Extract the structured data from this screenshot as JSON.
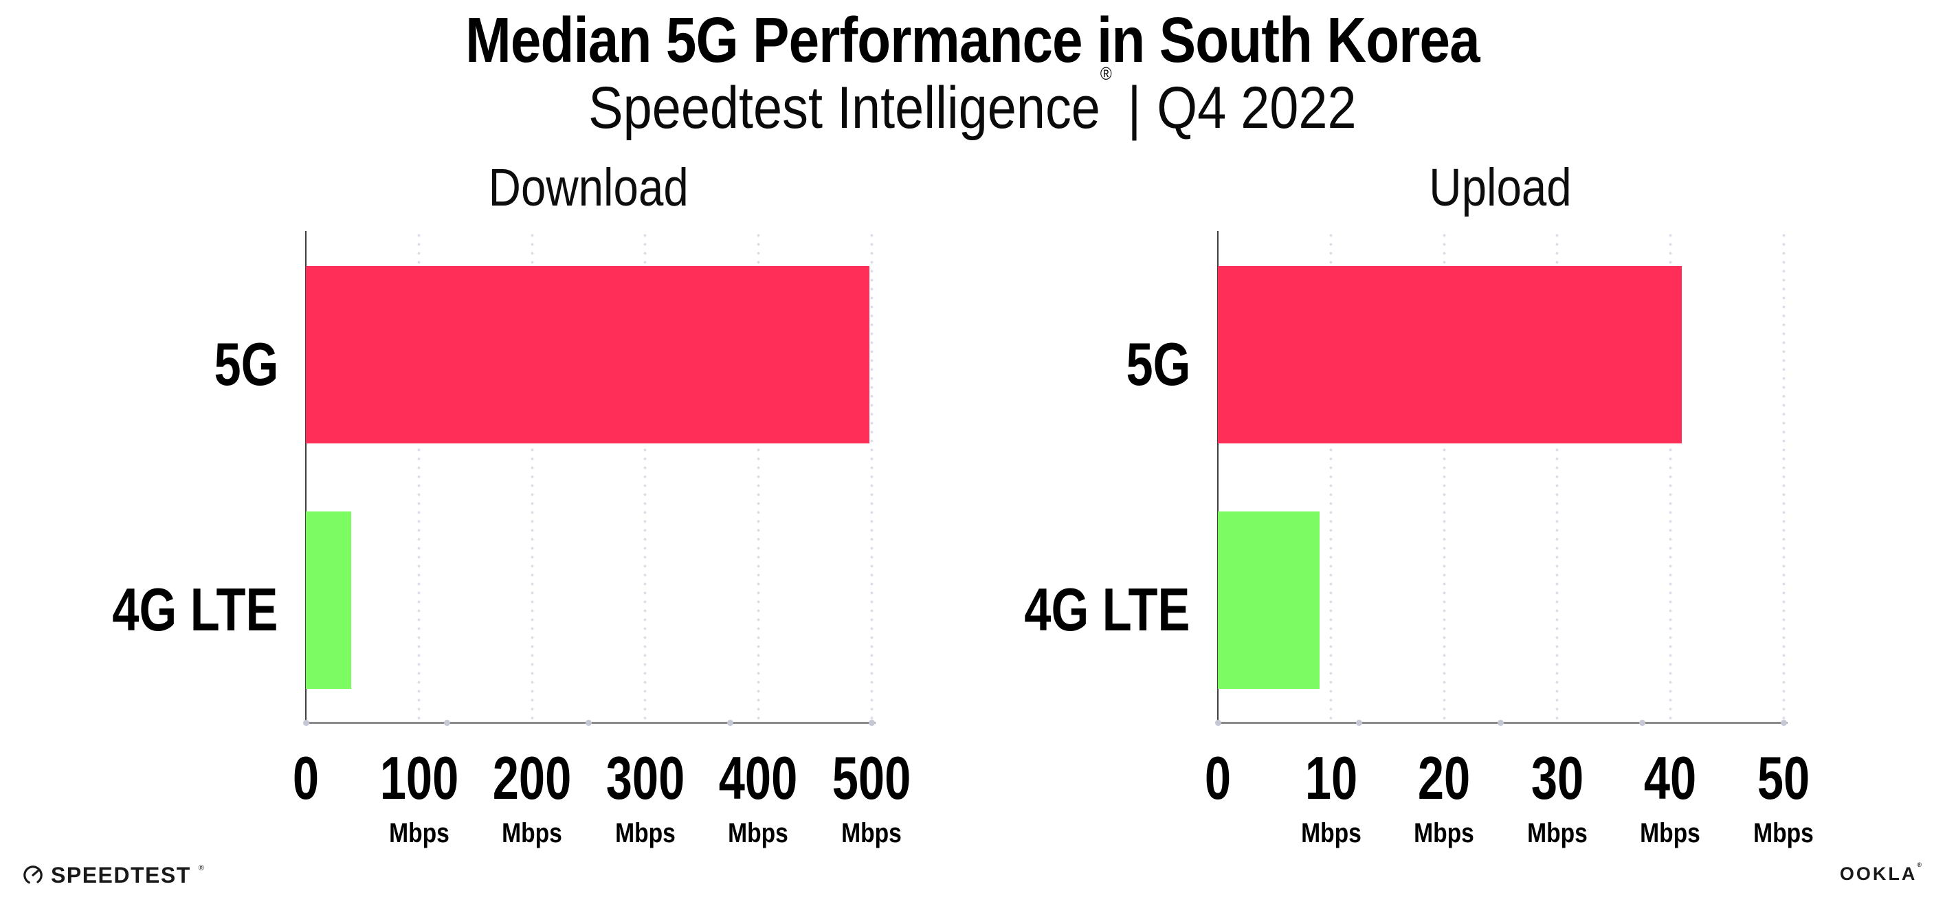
{
  "header": {
    "title": "Median 5G Performance in South Korea",
    "subtitle_brand": "Speedtest Intelligence",
    "subtitle_reg": "®",
    "subtitle_separator": "|",
    "subtitle_period": "Q4 2022"
  },
  "chart_data": [
    {
      "type": "bar",
      "orientation": "horizontal",
      "title": "Download",
      "categories": [
        "5G",
        "4G LTE"
      ],
      "values": [
        498,
        40
      ],
      "unit": "Mbps",
      "xlim": [
        0,
        500
      ],
      "xticks": [
        0,
        100,
        200,
        300,
        400,
        500
      ],
      "tick_unit_label": "Mbps",
      "bar_colors": [
        "#ff2e59",
        "#7cfc62"
      ],
      "grid": "dotted-vertical",
      "legend": "none"
    },
    {
      "type": "bar",
      "orientation": "horizontal",
      "title": "Upload",
      "categories": [
        "5G",
        "4G LTE"
      ],
      "values": [
        41,
        9
      ],
      "unit": "Mbps",
      "xlim": [
        0,
        50
      ],
      "xticks": [
        0,
        10,
        20,
        30,
        40,
        50
      ],
      "tick_unit_label": "Mbps",
      "bar_colors": [
        "#ff2e59",
        "#7cfc62"
      ],
      "grid": "dotted-vertical",
      "legend": "none"
    }
  ],
  "colors": {
    "bar_5g": "#ff2e59",
    "bar_4g_lte": "#7cfc62",
    "x_axis_line": "#8a8a8a",
    "y_axis_line": "#3f3f3f",
    "grid_dot": "#dcdde8",
    "axis_tick_dot": "#c6c7d4",
    "text": "#000000",
    "background": "#ffffff"
  },
  "footer": {
    "speedtest_logo_text": "SPEEDTEST",
    "speedtest_reg": "®",
    "speedtest_icon": "gauge-icon",
    "ookla_logo_text": "OOKLA",
    "ookla_reg": "®"
  }
}
